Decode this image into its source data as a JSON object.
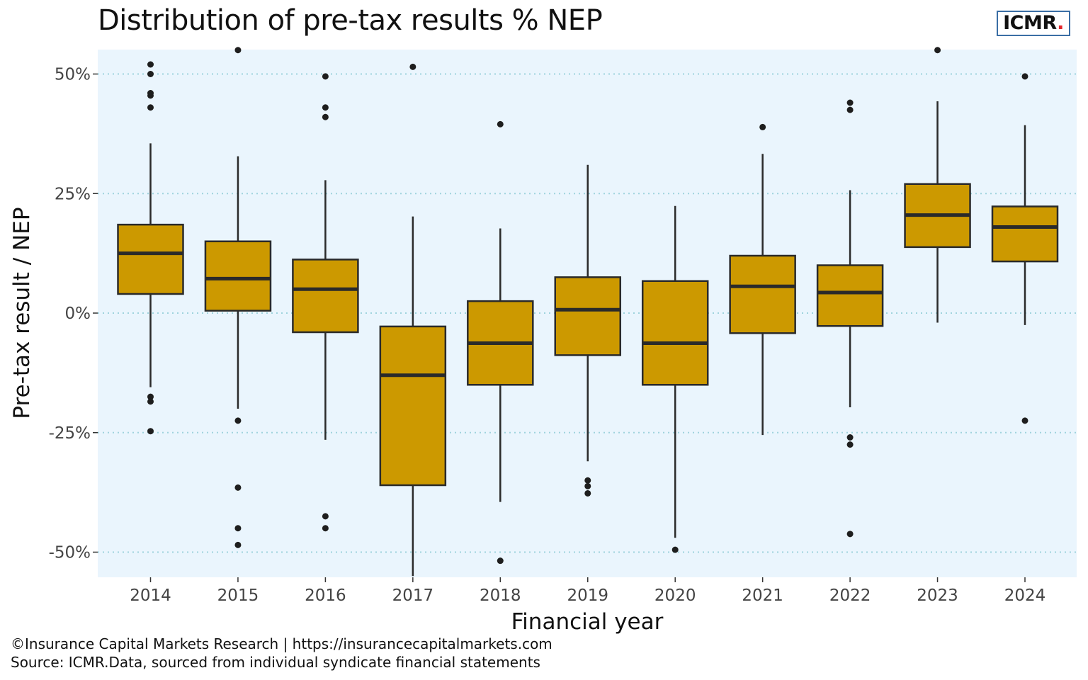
{
  "logo": {
    "text": "ICMR",
    "dot": ".",
    "accent": "#e3262b",
    "border": "#3a6ea5"
  },
  "footer": {
    "line1": "©Insurance Capital Markets Research | https://insurancecapitalmarkets.com",
    "line2": "Source: ICMR.Data, sourced from individual syndicate financial statements"
  },
  "colors": {
    "panel": "#eaf5fd",
    "box_fill": "#cc9900",
    "box_stroke": "#2a2a2a",
    "grid": "#9fd3dd"
  },
  "chart_data": {
    "type": "boxplot",
    "title": "Distribution of pre-tax results % NEP",
    "xlabel": "Financial year",
    "ylabel": "Pre-tax result / NEP",
    "ylim": [
      -55,
      55
    ],
    "yticks": [
      50,
      25,
      0,
      -25,
      -50
    ],
    "ytick_labels": [
      "50%",
      "25%",
      "0%",
      "-25%",
      "-50%"
    ],
    "grid": "horizontal dotted",
    "categories": [
      "2014",
      "2015",
      "2016",
      "2017",
      "2018",
      "2019",
      "2020",
      "2021",
      "2022",
      "2023",
      "2024"
    ],
    "boxes": [
      {
        "year": "2014",
        "whisker_low": -15.5,
        "q1": 4,
        "median": 12.5,
        "q3": 18.5,
        "whisker_high": 35.5,
        "outliers": [
          52,
          50,
          46,
          45.5,
          43,
          -17.5,
          -18.5,
          -24.7
        ]
      },
      {
        "year": "2015",
        "whisker_low": -20,
        "q1": 0.5,
        "median": 7.2,
        "q3": 15,
        "whisker_high": 32.8,
        "outliers": [
          55,
          -22.5,
          -36.5,
          -45,
          -48.5
        ]
      },
      {
        "year": "2016",
        "whisker_low": -26.5,
        "q1": -4,
        "median": 5,
        "q3": 11.2,
        "whisker_high": 27.8,
        "outliers": [
          49.5,
          43,
          41,
          -42.5,
          -45
        ]
      },
      {
        "year": "2017",
        "whisker_low": -55,
        "q1": -36,
        "median": -13,
        "q3": -2.8,
        "whisker_high": 20.2,
        "outliers": [
          51.5
        ]
      },
      {
        "year": "2018",
        "whisker_low": -39.5,
        "q1": -15,
        "median": -6.3,
        "q3": 2.5,
        "whisker_high": 17.7,
        "outliers": [
          39.5,
          -51.8
        ]
      },
      {
        "year": "2019",
        "whisker_low": -31,
        "q1": -8.8,
        "median": 0.7,
        "q3": 7.5,
        "whisker_high": 31,
        "outliers": [
          -35,
          -36.2,
          -37.7
        ]
      },
      {
        "year": "2020",
        "whisker_low": -47,
        "q1": -15,
        "median": -6.3,
        "q3": 6.7,
        "whisker_high": 22.4,
        "outliers": [
          -49.5
        ]
      },
      {
        "year": "2021",
        "whisker_low": -25.5,
        "q1": -4.2,
        "median": 5.6,
        "q3": 12,
        "whisker_high": 33.3,
        "outliers": [
          38.9
        ]
      },
      {
        "year": "2022",
        "whisker_low": -19.7,
        "q1": -2.7,
        "median": 4.3,
        "q3": 10,
        "whisker_high": 25.7,
        "outliers": [
          44,
          42.5,
          -26,
          -27.5,
          -46.2
        ]
      },
      {
        "year": "2023",
        "whisker_low": -2,
        "q1": 13.8,
        "median": 20.5,
        "q3": 27,
        "whisker_high": 44.3,
        "outliers": [
          55
        ]
      },
      {
        "year": "2024",
        "whisker_low": -2.5,
        "q1": 10.8,
        "median": 18,
        "q3": 22.3,
        "whisker_high": 39.3,
        "outliers": [
          49.5,
          -22.5
        ]
      }
    ]
  }
}
